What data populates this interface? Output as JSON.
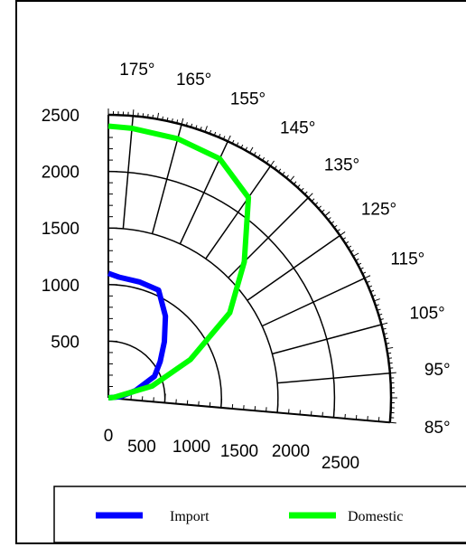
{
  "chart_data": {
    "type": "line",
    "projection": "polar-quarter",
    "radial_ticks": [
      0,
      500,
      1000,
      1500,
      2000,
      2500
    ],
    "r_axis_labels": [
      "0",
      "500",
      "1000",
      "1500",
      "2000",
      "2500"
    ],
    "x_axis_labels": [
      "0",
      "500",
      "1000",
      "1500",
      "2000",
      "2500"
    ],
    "angle_labels": [
      "175°",
      "165°",
      "155°",
      "145°",
      "135°",
      "125°",
      "115°",
      "105°",
      "95°",
      "85°"
    ],
    "angle_values": [
      175,
      165,
      155,
      145,
      135,
      125,
      115,
      105,
      95,
      85
    ],
    "rlim": [
      0,
      2500
    ],
    "angle_range": [
      85,
      180
    ],
    "series": [
      {
        "name": "Import",
        "color": "#0000ff",
        "points": [
          {
            "angle": 180,
            "r": 1100
          },
          {
            "angle": 175,
            "r": 1070
          },
          {
            "angle": 165,
            "r": 1060
          },
          {
            "angle": 155,
            "r": 1050
          },
          {
            "angle": 145,
            "r": 880
          },
          {
            "angle": 135,
            "r": 700
          },
          {
            "angle": 125,
            "r": 560
          },
          {
            "angle": 115,
            "r": 450
          },
          {
            "angle": 105,
            "r": 250
          },
          {
            "angle": 95,
            "r": 100
          }
        ]
      },
      {
        "name": "Domestic",
        "color": "#00ff00",
        "points": [
          {
            "angle": 180,
            "r": 2400
          },
          {
            "angle": 175,
            "r": 2390
          },
          {
            "angle": 165,
            "r": 2370
          },
          {
            "angle": 155,
            "r": 2330
          },
          {
            "angle": 145,
            "r": 2160
          },
          {
            "angle": 135,
            "r": 1700
          },
          {
            "angle": 125,
            "r": 1310
          },
          {
            "angle": 115,
            "r": 800
          },
          {
            "angle": 105,
            "r": 400
          },
          {
            "angle": 95,
            "r": 50
          }
        ]
      }
    ],
    "legend": {
      "position": "bottom",
      "items": [
        "Import",
        "Domestic"
      ]
    }
  }
}
